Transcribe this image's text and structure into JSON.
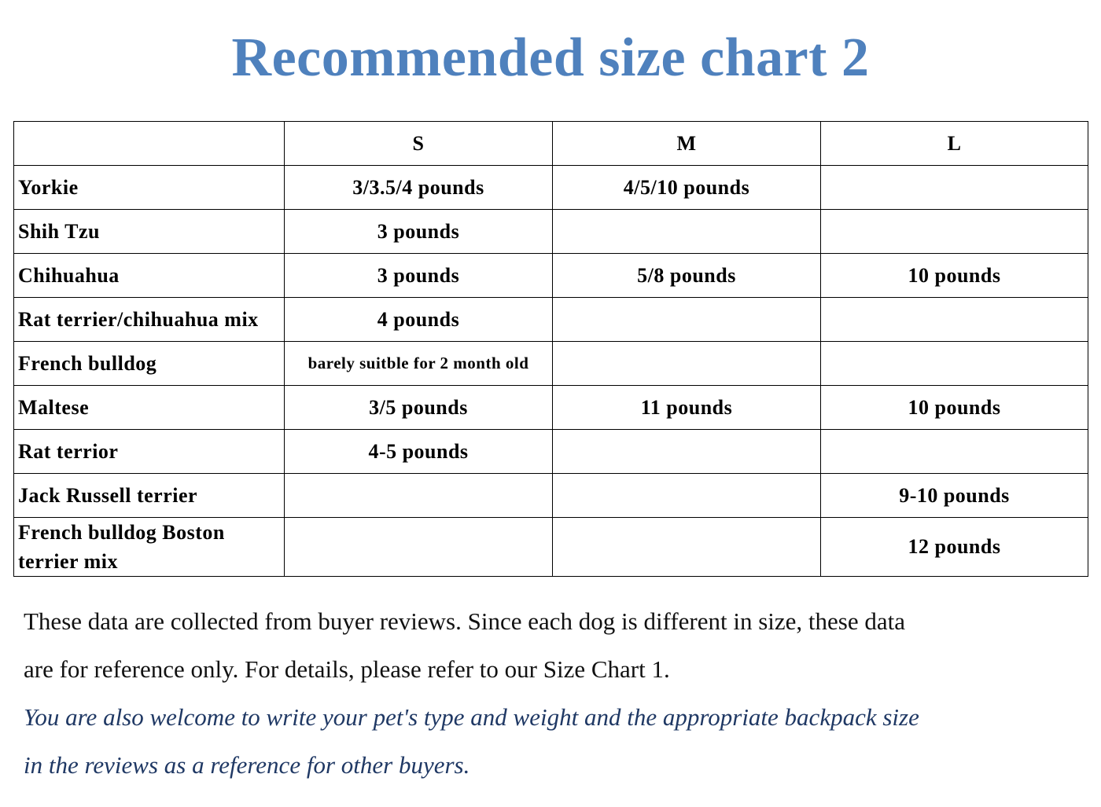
{
  "title": "Recommended size chart 2",
  "table": {
    "headers": [
      "",
      "S",
      "M",
      "L"
    ],
    "rows": [
      {
        "breed": "Yorkie",
        "s": "3/3.5/4 pounds",
        "m": "4/5/10 pounds",
        "l": ""
      },
      {
        "breed": "Shih Tzu",
        "s": "3 pounds",
        "m": "",
        "l": ""
      },
      {
        "breed": "Chihuahua",
        "s": "3 pounds",
        "m": "5/8 pounds",
        "l": "10 pounds"
      },
      {
        "breed": "Rat terrier/chihuahua mix",
        "s": "4 pounds",
        "m": "",
        "l": ""
      },
      {
        "breed": "French bulldog",
        "s": "barely suitble for 2 month old",
        "m": "",
        "l": ""
      },
      {
        "breed": "Maltese",
        "s": "3/5 pounds",
        "m": "11 pounds",
        "l": "10 pounds"
      },
      {
        "breed": "Rat terrior",
        "s": "4-5 pounds",
        "m": "",
        "l": ""
      },
      {
        "breed": "Jack Russell terrier",
        "s": "",
        "m": "",
        "l": "9-10 pounds"
      },
      {
        "breed": "French bulldog Boston terrier mix",
        "s": "",
        "m": "",
        "l": "12 pounds"
      }
    ]
  },
  "note": {
    "line1": "These data are collected from buyer reviews. Since each dog is different in size, these data",
    "line2": "are for reference only. For details, please refer to our Size Chart 1.",
    "line3": "You are also welcome to write your pet's type and weight and the appropriate backpack size",
    "line4": "in the reviews as a reference for other buyers."
  },
  "colors": {
    "title": "#4f81bd",
    "italic_note": "#1f3864"
  }
}
